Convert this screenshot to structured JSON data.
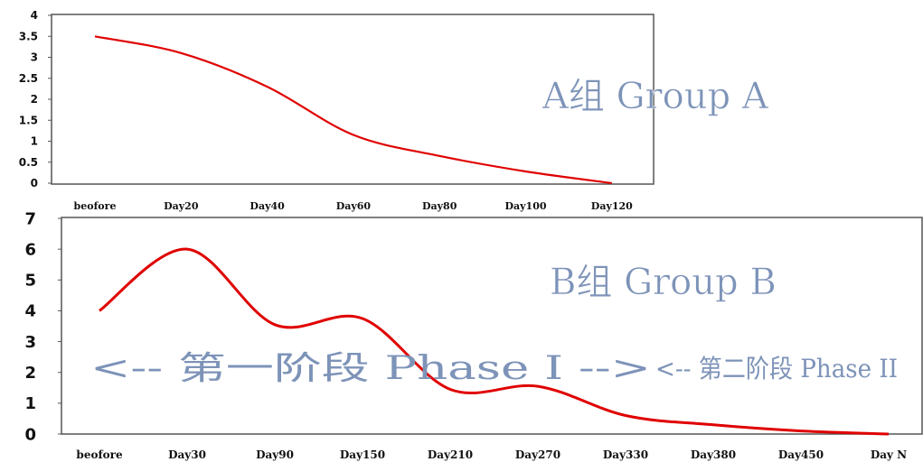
{
  "chart_data": [
    {
      "type": "line",
      "title": "A组 Group A",
      "categories": [
        "beofore",
        "Day20",
        "Day40",
        "Day60",
        "Day80",
        "Day100",
        "Day120"
      ],
      "ylim": [
        0,
        4
      ],
      "yticks": [
        "0",
        "0.5",
        "1",
        "1.5",
        "2",
        "2.5",
        "3",
        "3.5",
        "4"
      ],
      "series": [
        {
          "values": [
            3.5,
            3.1,
            2.3,
            1.15,
            0.65,
            0.28,
            0.0
          ]
        }
      ],
      "line_color": "#e00000",
      "grid": false,
      "legend": false
    },
    {
      "type": "line",
      "title": "B组 Group B",
      "categories": [
        "beofore",
        "Day30",
        "Day90",
        "Day150",
        "Day210",
        "Day270",
        "Day330",
        "Day380",
        "Day450",
        "Day N"
      ],
      "ylim": [
        0,
        7
      ],
      "yticks": [
        "0",
        "1",
        "2",
        "3",
        "4",
        "5",
        "6",
        "7"
      ],
      "series": [
        {
          "values": [
            4.0,
            6.0,
            3.55,
            3.75,
            1.45,
            1.55,
            0.6,
            0.3,
            0.1,
            0.0
          ]
        }
      ],
      "annotations": [
        "<-- 第一阶段 Phase I -->",
        "<-- 第二阶段 Phase II"
      ],
      "line_color": "#e00000",
      "grid": false,
      "legend": false
    }
  ]
}
